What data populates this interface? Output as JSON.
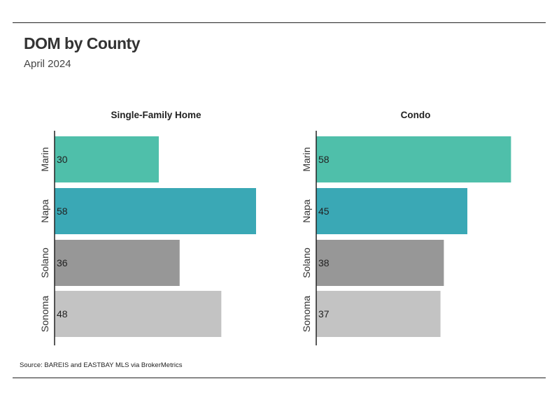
{
  "title": "DOM by County",
  "subtitle": "April 2024",
  "source": "Source:  BAREIS and EASTBAY MLS via BrokerMetrics",
  "colors": {
    "Marin": "#4fbfaa",
    "Napa": "#3aa8b5",
    "Solano": "#979797",
    "Sonoma": "#c3c3c3"
  },
  "chart_data": [
    {
      "type": "bar",
      "orientation": "horizontal",
      "title": "Single-Family Home",
      "categories": [
        "Marin",
        "Napa",
        "Solano",
        "Sonoma"
      ],
      "values": [
        30,
        58,
        36,
        48
      ],
      "xlim": [
        0,
        58
      ],
      "data_labels": true,
      "grid": false
    },
    {
      "type": "bar",
      "orientation": "horizontal",
      "title": "Condo",
      "categories": [
        "Marin",
        "Napa",
        "Solano",
        "Sonoma"
      ],
      "values": [
        58,
        45,
        38,
        37
      ],
      "xlim": [
        0,
        60
      ],
      "data_labels": true,
      "grid": false
    }
  ]
}
